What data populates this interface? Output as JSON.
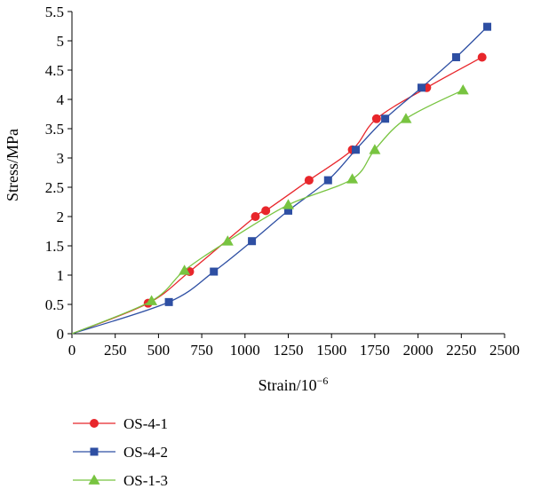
{
  "chart_data": {
    "type": "line",
    "xlabel": "Strain/10",
    "xlabel_exponent": "−6",
    "ylabel": "Stress/MPa",
    "xlim": [
      0,
      2500
    ],
    "ylim": [
      0,
      5.5
    ],
    "xticks": [
      "0",
      "250",
      "500",
      "750",
      "1000",
      "1250",
      "1500",
      "1750",
      "2000",
      "2250",
      "2500"
    ],
    "yticks": [
      "0",
      "0.5",
      "1",
      "1.5",
      "2",
      "2.5",
      "3",
      "3.5",
      "4",
      "4.5",
      "5",
      "5.5"
    ],
    "grid": false,
    "legend_position": "bottom-left",
    "series": [
      {
        "name": "OS-4-1",
        "color": "#e8262b",
        "marker": "circle",
        "points": [
          [
            0,
            0
          ],
          [
            440,
            0.52
          ],
          [
            680,
            1.06
          ],
          [
            1060,
            2.0
          ],
          [
            1120,
            2.1
          ],
          [
            1370,
            2.62
          ],
          [
            1620,
            3.14
          ],
          [
            1760,
            3.67
          ],
          [
            2050,
            4.2
          ],
          [
            2370,
            4.72
          ]
        ]
      },
      {
        "name": "OS-4-2",
        "color": "#2e4fa3",
        "marker": "square",
        "points": [
          [
            0,
            0
          ],
          [
            560,
            0.54
          ],
          [
            820,
            1.06
          ],
          [
            1040,
            1.58
          ],
          [
            1250,
            2.1
          ],
          [
            1480,
            2.62
          ],
          [
            1640,
            3.14
          ],
          [
            1810,
            3.67
          ],
          [
            2020,
            4.2
          ],
          [
            2220,
            4.72
          ],
          [
            2400,
            5.24
          ]
        ]
      },
      {
        "name": "OS-1-3",
        "color": "#78c440",
        "marker": "triangle",
        "points": [
          [
            0,
            0
          ],
          [
            460,
            0.56
          ],
          [
            650,
            1.08
          ],
          [
            900,
            1.58
          ],
          [
            1250,
            2.2
          ],
          [
            1620,
            2.64
          ],
          [
            1750,
            3.14
          ],
          [
            1930,
            3.67
          ],
          [
            2260,
            4.16
          ]
        ]
      }
    ]
  }
}
